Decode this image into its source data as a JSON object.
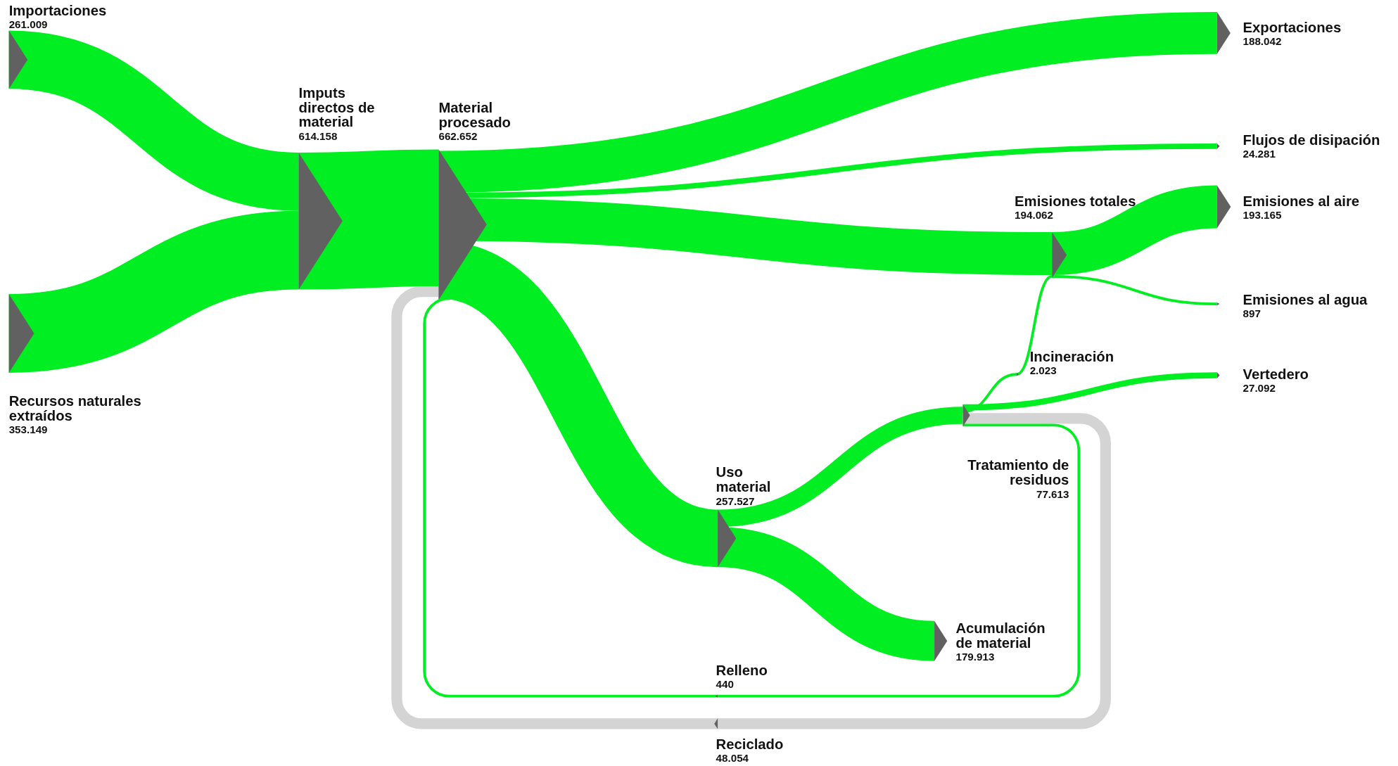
{
  "chart_data": {
    "type": "other",
    "categories": [
      "Importaciones",
      "Recursos naturales extraídos",
      "Imputs directos de material",
      "Material procesado",
      "Exportaciones",
      "Flujos de disipación",
      "Emisiones totales",
      "Emisiones al aire",
      "Emisiones al agua",
      "Incineración",
      "Vertedero",
      "Uso material",
      "Tratamiento de residuos",
      "Acumulación de material",
      "Relleno",
      "Reciclado"
    ],
    "value_labels": [
      "261.009",
      "353.149",
      "614.158",
      "662.652",
      "188.042",
      "24.281",
      "194.062",
      "193.165",
      "897",
      "2.023",
      "27.092",
      "257.527",
      "77.613",
      "179.913",
      "440",
      "48.054"
    ],
    "values": [
      261009,
      353149,
      614158,
      662652,
      188042,
      24281,
      194062,
      193165,
      897,
      2023,
      27092,
      257527,
      77613,
      179913,
      440,
      48054
    ],
    "colors": [
      "#00ee22",
      "#00ee22",
      "#00ee22",
      "#00ee22",
      "#00ee22",
      "#00ee22",
      "#00ee22",
      "#00ee22",
      "#00ee22",
      "#00ee22",
      "#00ee22",
      "#00ee22",
      "#00ee22",
      "#00ee22",
      "#00ee22",
      "#d4d4d4"
    ]
  }
}
